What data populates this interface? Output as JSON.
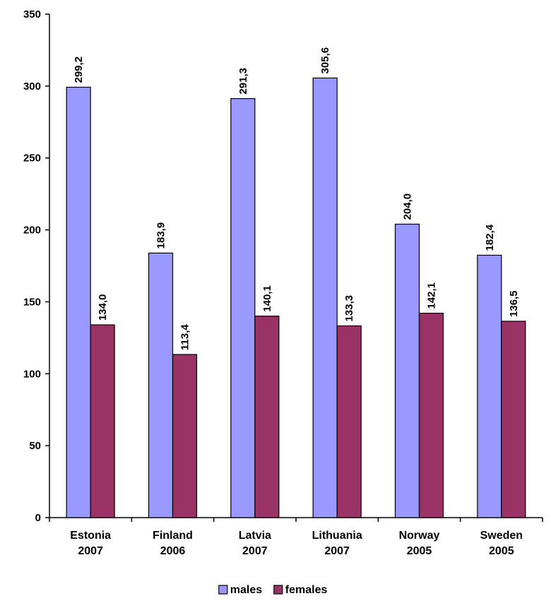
{
  "chart_data": {
    "type": "bar",
    "categories": [
      [
        "Estonia",
        "2007"
      ],
      [
        "Finland",
        "2006"
      ],
      [
        "Latvia",
        "2007"
      ],
      [
        "Lithuania",
        "2007"
      ],
      [
        "Norway",
        "2005"
      ],
      [
        "Sweden",
        "2005"
      ]
    ],
    "series": [
      {
        "name": "males",
        "color": "#9999ff",
        "values": [
          299.2,
          183.9,
          291.3,
          305.6,
          204.0,
          182.4
        ],
        "labels": [
          "299,2",
          "183,9",
          "291,3",
          "305,6",
          "204,0",
          "182,4"
        ]
      },
      {
        "name": "females",
        "color": "#993366",
        "values": [
          134.0,
          113.4,
          140.1,
          133.3,
          142.1,
          136.5
        ],
        "labels": [
          "134,0",
          "113,4",
          "140,1",
          "133,3",
          "142,1",
          "136,5"
        ]
      }
    ],
    "y_ticks": [
      "0",
      "50",
      "100",
      "150",
      "200",
      "250",
      "300",
      "350"
    ],
    "ylim": [
      0,
      350
    ],
    "grid": false,
    "legend_position": "bottom"
  }
}
